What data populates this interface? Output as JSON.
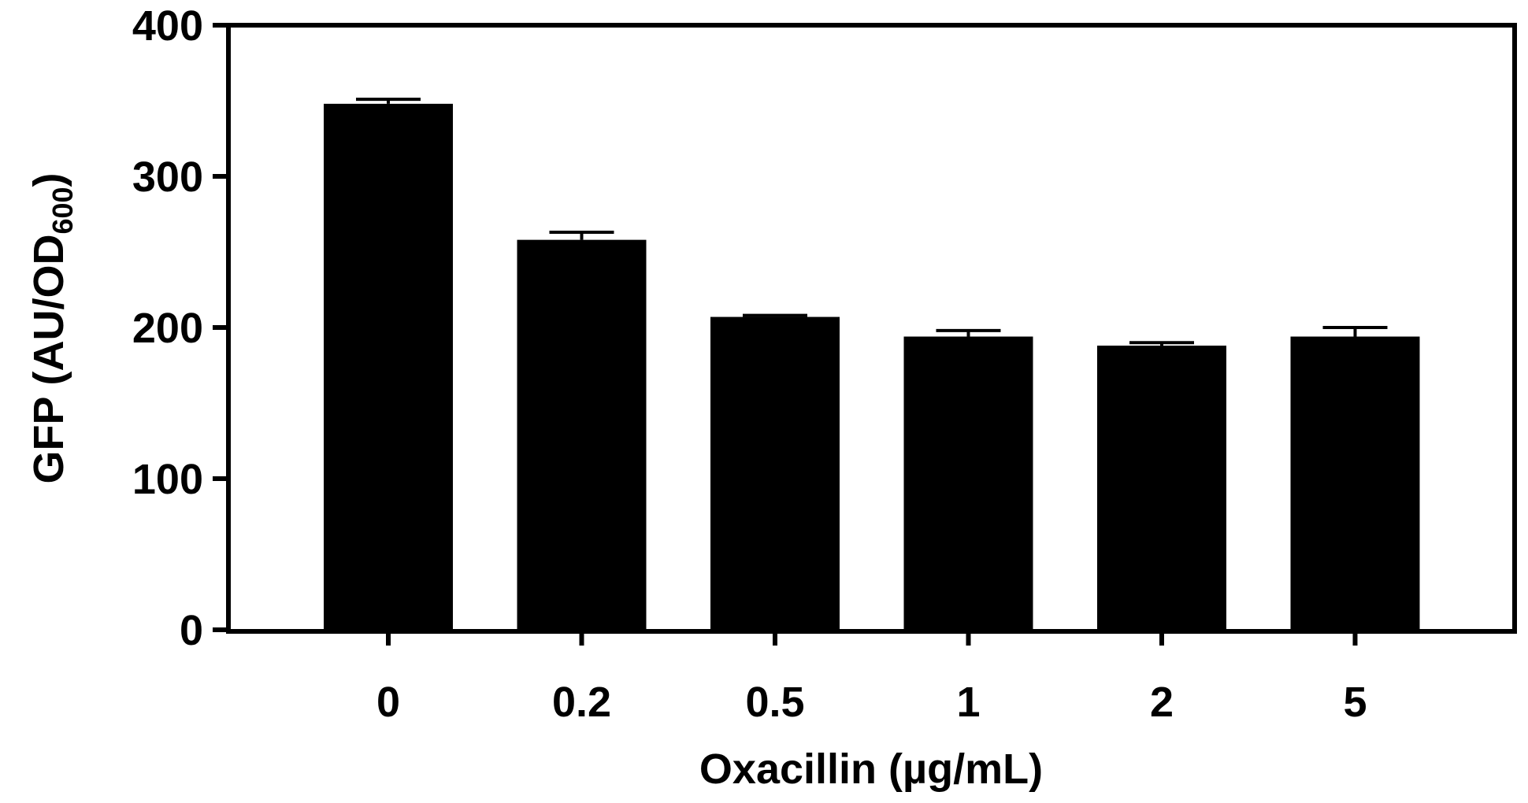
{
  "chart_data": {
    "type": "bar",
    "categories": [
      "0",
      "0.2",
      "0.5",
      "1",
      "2",
      "5"
    ],
    "values": [
      348,
      258,
      207,
      194,
      188,
      194
    ],
    "errors": [
      3,
      5,
      1,
      4,
      2,
      6
    ],
    "ylim": [
      0,
      400
    ],
    "yticks": [
      "0",
      "100",
      "200",
      "300",
      "400"
    ],
    "xlabel": "Oxacillin (µg/mL)",
    "ylabel_main": "GFP (AU/OD",
    "ylabel_sub": "600",
    "ylabel_end": ")",
    "grid": false,
    "bar_color": "#000000"
  }
}
